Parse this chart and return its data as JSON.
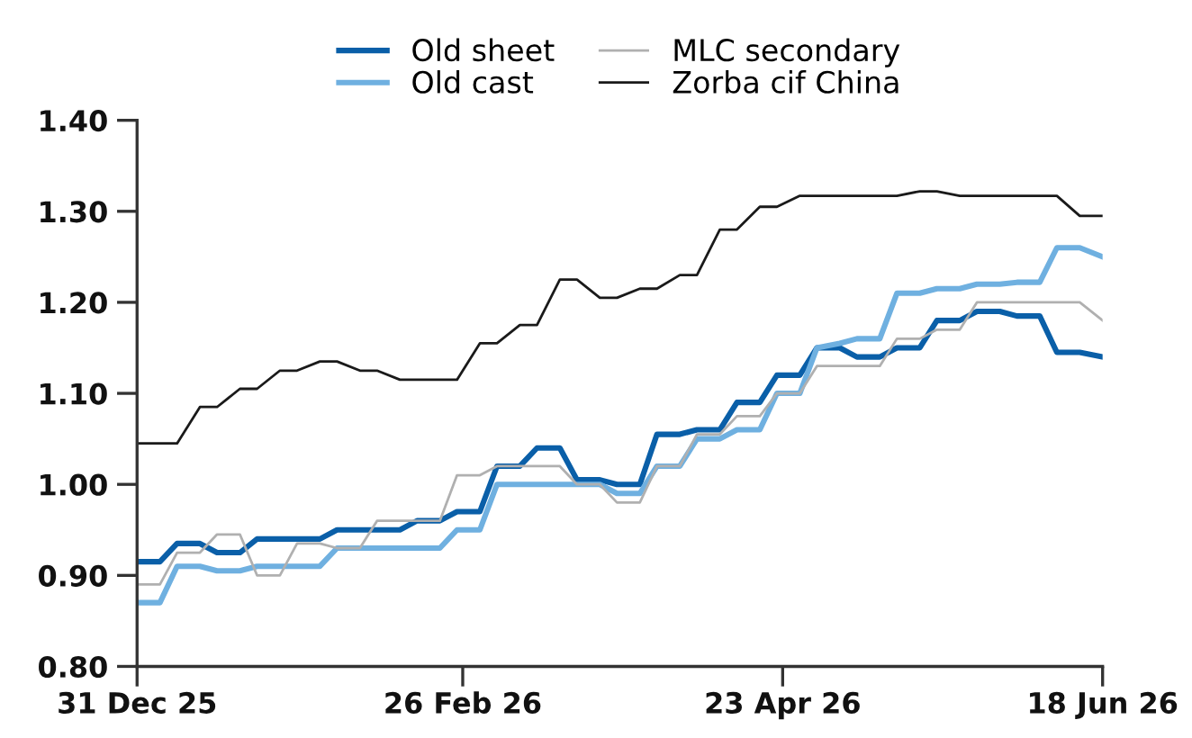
{
  "chart_data": {
    "type": "line",
    "x": [
      "2025-12-31",
      "2026-01-04",
      "2026-01-07",
      "2026-01-11",
      "2026-01-14",
      "2026-01-18",
      "2026-01-21",
      "2026-01-25",
      "2026-01-28",
      "2026-02-01",
      "2026-02-04",
      "2026-02-08",
      "2026-02-11",
      "2026-02-15",
      "2026-02-18",
      "2026-02-22",
      "2026-02-25",
      "2026-03-01",
      "2026-03-04",
      "2026-03-08",
      "2026-03-11",
      "2026-03-15",
      "2026-03-18",
      "2026-03-22",
      "2026-03-25",
      "2026-03-29",
      "2026-04-01",
      "2026-04-05",
      "2026-04-08",
      "2026-04-12",
      "2026-04-15",
      "2026-04-19",
      "2026-04-22",
      "2026-04-26",
      "2026-04-29",
      "2026-05-03",
      "2026-05-06",
      "2026-05-10",
      "2026-05-13",
      "2026-05-17",
      "2026-05-20",
      "2026-05-24",
      "2026-05-27",
      "2026-05-31",
      "2026-06-03",
      "2026-06-07",
      "2026-06-10",
      "2026-06-14",
      "2026-06-18"
    ],
    "series": [
      {
        "name": "Old sheet",
        "color": "#0a5fa8",
        "values": [
          0.915,
          0.915,
          0.935,
          0.935,
          0.925,
          0.925,
          0.94,
          0.94,
          0.94,
          0.94,
          0.95,
          0.95,
          0.95,
          0.95,
          0.96,
          0.96,
          0.97,
          0.97,
          1.02,
          1.02,
          1.04,
          1.04,
          1.005,
          1.005,
          1.0,
          1.0,
          1.055,
          1.055,
          1.06,
          1.06,
          1.09,
          1.09,
          1.12,
          1.12,
          1.15,
          1.15,
          1.14,
          1.14,
          1.15,
          1.15,
          1.18,
          1.18,
          1.19,
          1.19,
          1.185,
          1.185,
          1.145,
          1.145,
          1.14
        ]
      },
      {
        "name": "Old cast",
        "color": "#6fb0e0",
        "values": [
          0.87,
          0.87,
          0.91,
          0.91,
          0.905,
          0.905,
          0.91,
          0.91,
          0.91,
          0.91,
          0.93,
          0.93,
          0.93,
          0.93,
          0.93,
          0.93,
          0.95,
          0.95,
          1.0,
          1.0,
          1.0,
          1.0,
          1.0,
          1.0,
          0.99,
          0.99,
          1.02,
          1.02,
          1.05,
          1.05,
          1.06,
          1.06,
          1.1,
          1.1,
          1.15,
          1.155,
          1.16,
          1.16,
          1.21,
          1.21,
          1.215,
          1.215,
          1.22,
          1.22,
          1.222,
          1.222,
          1.26,
          1.26,
          1.25
        ]
      },
      {
        "name": "MLC secondary",
        "color": "#b0b0b0",
        "values": [
          0.89,
          0.89,
          0.925,
          0.925,
          0.945,
          0.945,
          0.9,
          0.9,
          0.935,
          0.935,
          0.93,
          0.93,
          0.96,
          0.96,
          0.96,
          0.96,
          1.01,
          1.01,
          1.02,
          1.02,
          1.02,
          1.02,
          1.0,
          1.0,
          0.98,
          0.98,
          1.02,
          1.02,
          1.055,
          1.055,
          1.075,
          1.075,
          1.1,
          1.1,
          1.13,
          1.13,
          1.13,
          1.13,
          1.16,
          1.16,
          1.17,
          1.17,
          1.2,
          1.2,
          1.2,
          1.2,
          1.2,
          1.2,
          1.18
        ]
      },
      {
        "name": "Zorba cif China",
        "color": "#1a1a1a",
        "values": [
          1.045,
          1.045,
          1.045,
          1.085,
          1.085,
          1.105,
          1.105,
          1.125,
          1.125,
          1.135,
          1.135,
          1.125,
          1.125,
          1.115,
          1.115,
          1.115,
          1.115,
          1.155,
          1.155,
          1.175,
          1.175,
          1.225,
          1.225,
          1.205,
          1.205,
          1.215,
          1.215,
          1.23,
          1.23,
          1.28,
          1.28,
          1.305,
          1.305,
          1.317,
          1.317,
          1.317,
          1.317,
          1.317,
          1.317,
          1.322,
          1.322,
          1.317,
          1.317,
          1.317,
          1.317,
          1.317,
          1.317,
          1.295,
          1.295
        ]
      }
    ],
    "xlim": [
      "2025-12-31",
      "2026-06-18"
    ],
    "xticks": [
      {
        "value": "2025-12-31",
        "label": "31 Dec 25"
      },
      {
        "value": "2026-02-26",
        "label": "26 Feb 26"
      },
      {
        "value": "2026-04-23",
        "label": "23 Apr 26"
      },
      {
        "value": "2026-06-18",
        "label": "18 Jun 26"
      }
    ],
    "ylim": [
      0.8,
      1.4
    ],
    "yticks": [
      {
        "value": 0.8,
        "label": "0.80"
      },
      {
        "value": 0.9,
        "label": "0.90"
      },
      {
        "value": 1.0,
        "label": "1.00"
      },
      {
        "value": 1.1,
        "label": "1.10"
      },
      {
        "value": 1.2,
        "label": "1.20"
      },
      {
        "value": 1.3,
        "label": "1.30"
      },
      {
        "value": 1.4,
        "label": "1.40"
      }
    ],
    "grid": false,
    "legend": "top",
    "marker": "none",
    "line_style": "solid"
  }
}
